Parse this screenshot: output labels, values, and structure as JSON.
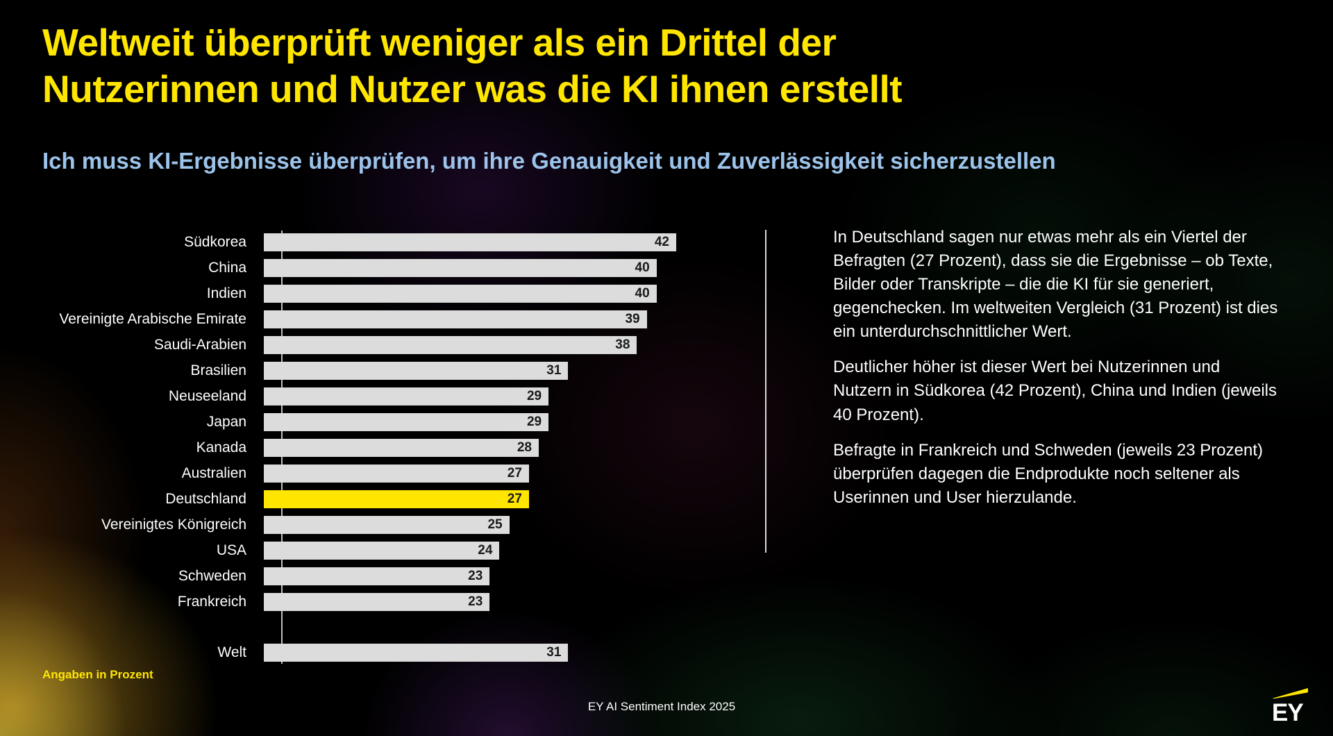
{
  "header": {
    "title_lines": [
      "Weltweit überprüft weniger als ein Drittel der",
      "Nutzerinnen und Nutzer was die KI ihnen erstellt"
    ],
    "subtitle": "Ich muss KI-Ergebnisse überprüfen, um ihre Genauigkeit und Zuverlässigkeit sicherzustellen"
  },
  "chart_data": {
    "type": "bar",
    "orientation": "horizontal",
    "title": "Ich muss KI-Ergebnisse überprüfen, um ihre Genauigkeit und Zuverlässigkeit sicherzustellen",
    "unit": "Prozent",
    "xlim": [
      0,
      42
    ],
    "categories": [
      "Südkorea",
      "China",
      "Indien",
      "Vereinigte Arabische Emirate",
      "Saudi-Arabien",
      "Brasilien",
      "Neuseeland",
      "Japan",
      "Kanada",
      "Australien",
      "Deutschland",
      "Vereinigtes Königreich",
      "USA",
      "Schweden",
      "Frankreich",
      "Welt"
    ],
    "values": [
      42,
      40,
      40,
      39,
      38,
      31,
      29,
      29,
      28,
      27,
      27,
      25,
      24,
      23,
      23,
      31
    ],
    "highlight_category": "Deutschland",
    "separated_category": "Welt",
    "bar_color": "#DCDCDC",
    "highlight_color": "#FFE600",
    "value_labels_shown": true,
    "grid": false,
    "legend": false,
    "note": "Angaben in Prozent"
  },
  "annotation": {
    "paragraphs": [
      "In Deutschland sagen nur etwas mehr als ein Viertel der Befragten (27 Prozent), dass sie die Ergebnisse – ob Texte, Bilder oder Transkripte – die die KI für sie generiert, gegenchecken. Im weltweiten Vergleich (31 Prozent) ist dies ein unterdurchschnittlicher Wert.",
      "Deutlicher höher ist dieser Wert bei Nutzerinnen und Nutzern in Südkorea (42 Prozent), China und Indien (jeweils 40 Prozent).",
      "Befragte in Frankreich und Schweden (jeweils 23 Prozent) überprüfen dagegen die Endprodukte noch seltener als Userinnen und User hierzulande."
    ]
  },
  "footer": {
    "source": "EY AI Sentiment Index 2025",
    "logo_text": "EY"
  },
  "colors": {
    "accent_yellow": "#FFE600",
    "subtitle_blue": "#9CC3EA",
    "bar_gray": "#DCDCDC",
    "background": "#000000"
  }
}
